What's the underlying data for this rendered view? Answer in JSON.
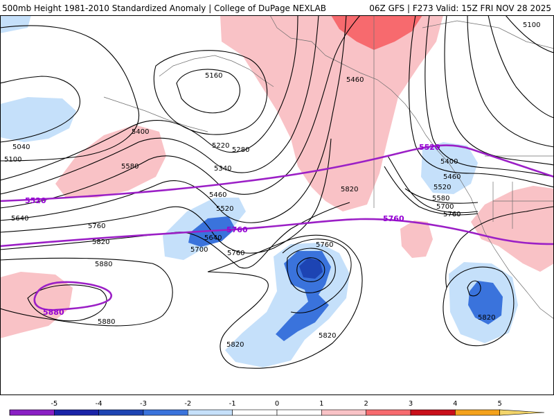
{
  "header": {
    "title_left": "500mb Height 1981-2010 Standardized Anomaly | College of DuPage NEXLAB",
    "title_right": "06Z GFS | F273 Valid: 15Z FRI NOV 28 2025"
  },
  "colors": {
    "anom_pos_1": "#f9c2c6",
    "anom_pos_2": "#f76a6e",
    "anom_neg_1": "#c5e0fa",
    "anom_neg_2": "#3a73dc",
    "anom_neg_3": "#1d44b3",
    "thickness_line": "#9b1fc6"
  },
  "contour_labels": {
    "h5100_w": "5100",
    "h5040_w": "5040",
    "h5160": "5160",
    "h5220": "5220",
    "h5280": "5280",
    "h5340": "5340",
    "h5400_w": "5400",
    "h5460_w": "5460",
    "h5460_n": "5460",
    "h5520_w": "5520",
    "h5580_w": "5580",
    "h5640_w": "5640",
    "h5640_c": "5640",
    "h5700_c": "5700",
    "h5760_w": "5760",
    "h5760_c": "5760",
    "h5760_low": "5760",
    "h5820_w": "5820",
    "h5820_c": "5820",
    "h5820_low1": "5820",
    "h5820_low2": "5820",
    "h5820_e": "5820",
    "h5880_w": "5880",
    "h5880_s": "5880",
    "h5100_e": "5100",
    "h5400_e": "5400",
    "h5460_e": "5460",
    "h5520_e": "5520",
    "h5580_e": "5580",
    "h5700_e": "5700",
    "h5760_e": "5760"
  },
  "thickness_labels": {
    "t5520_w": "5520",
    "t5520_e": "5520",
    "t5760_c": "5760",
    "t5760_e": "5760",
    "t5880_w": "5880"
  },
  "colorbar": {
    "ticks": [
      "-5",
      "-4",
      "-3",
      "-2",
      "-1",
      "0",
      "1",
      "2",
      "3",
      "4",
      "5"
    ],
    "bins": [
      {
        "value": -5.5,
        "color": "#8a1fc4"
      },
      {
        "value": -4.5,
        "color": "#1a23a8"
      },
      {
        "value": -3.5,
        "color": "#1d44b3"
      },
      {
        "value": -2.5,
        "color": "#3a73dc"
      },
      {
        "value": -1.5,
        "color": "#c5e0fa"
      },
      {
        "value": -0.5,
        "color": "#ffffff"
      },
      {
        "value": 0.5,
        "color": "#ffffff"
      },
      {
        "value": 1.5,
        "color": "#f9c2c6"
      },
      {
        "value": 2.5,
        "color": "#f76a6e"
      },
      {
        "value": 3.5,
        "color": "#c90f1a"
      },
      {
        "value": 4.5,
        "color": "#f4a21c"
      }
    ]
  }
}
